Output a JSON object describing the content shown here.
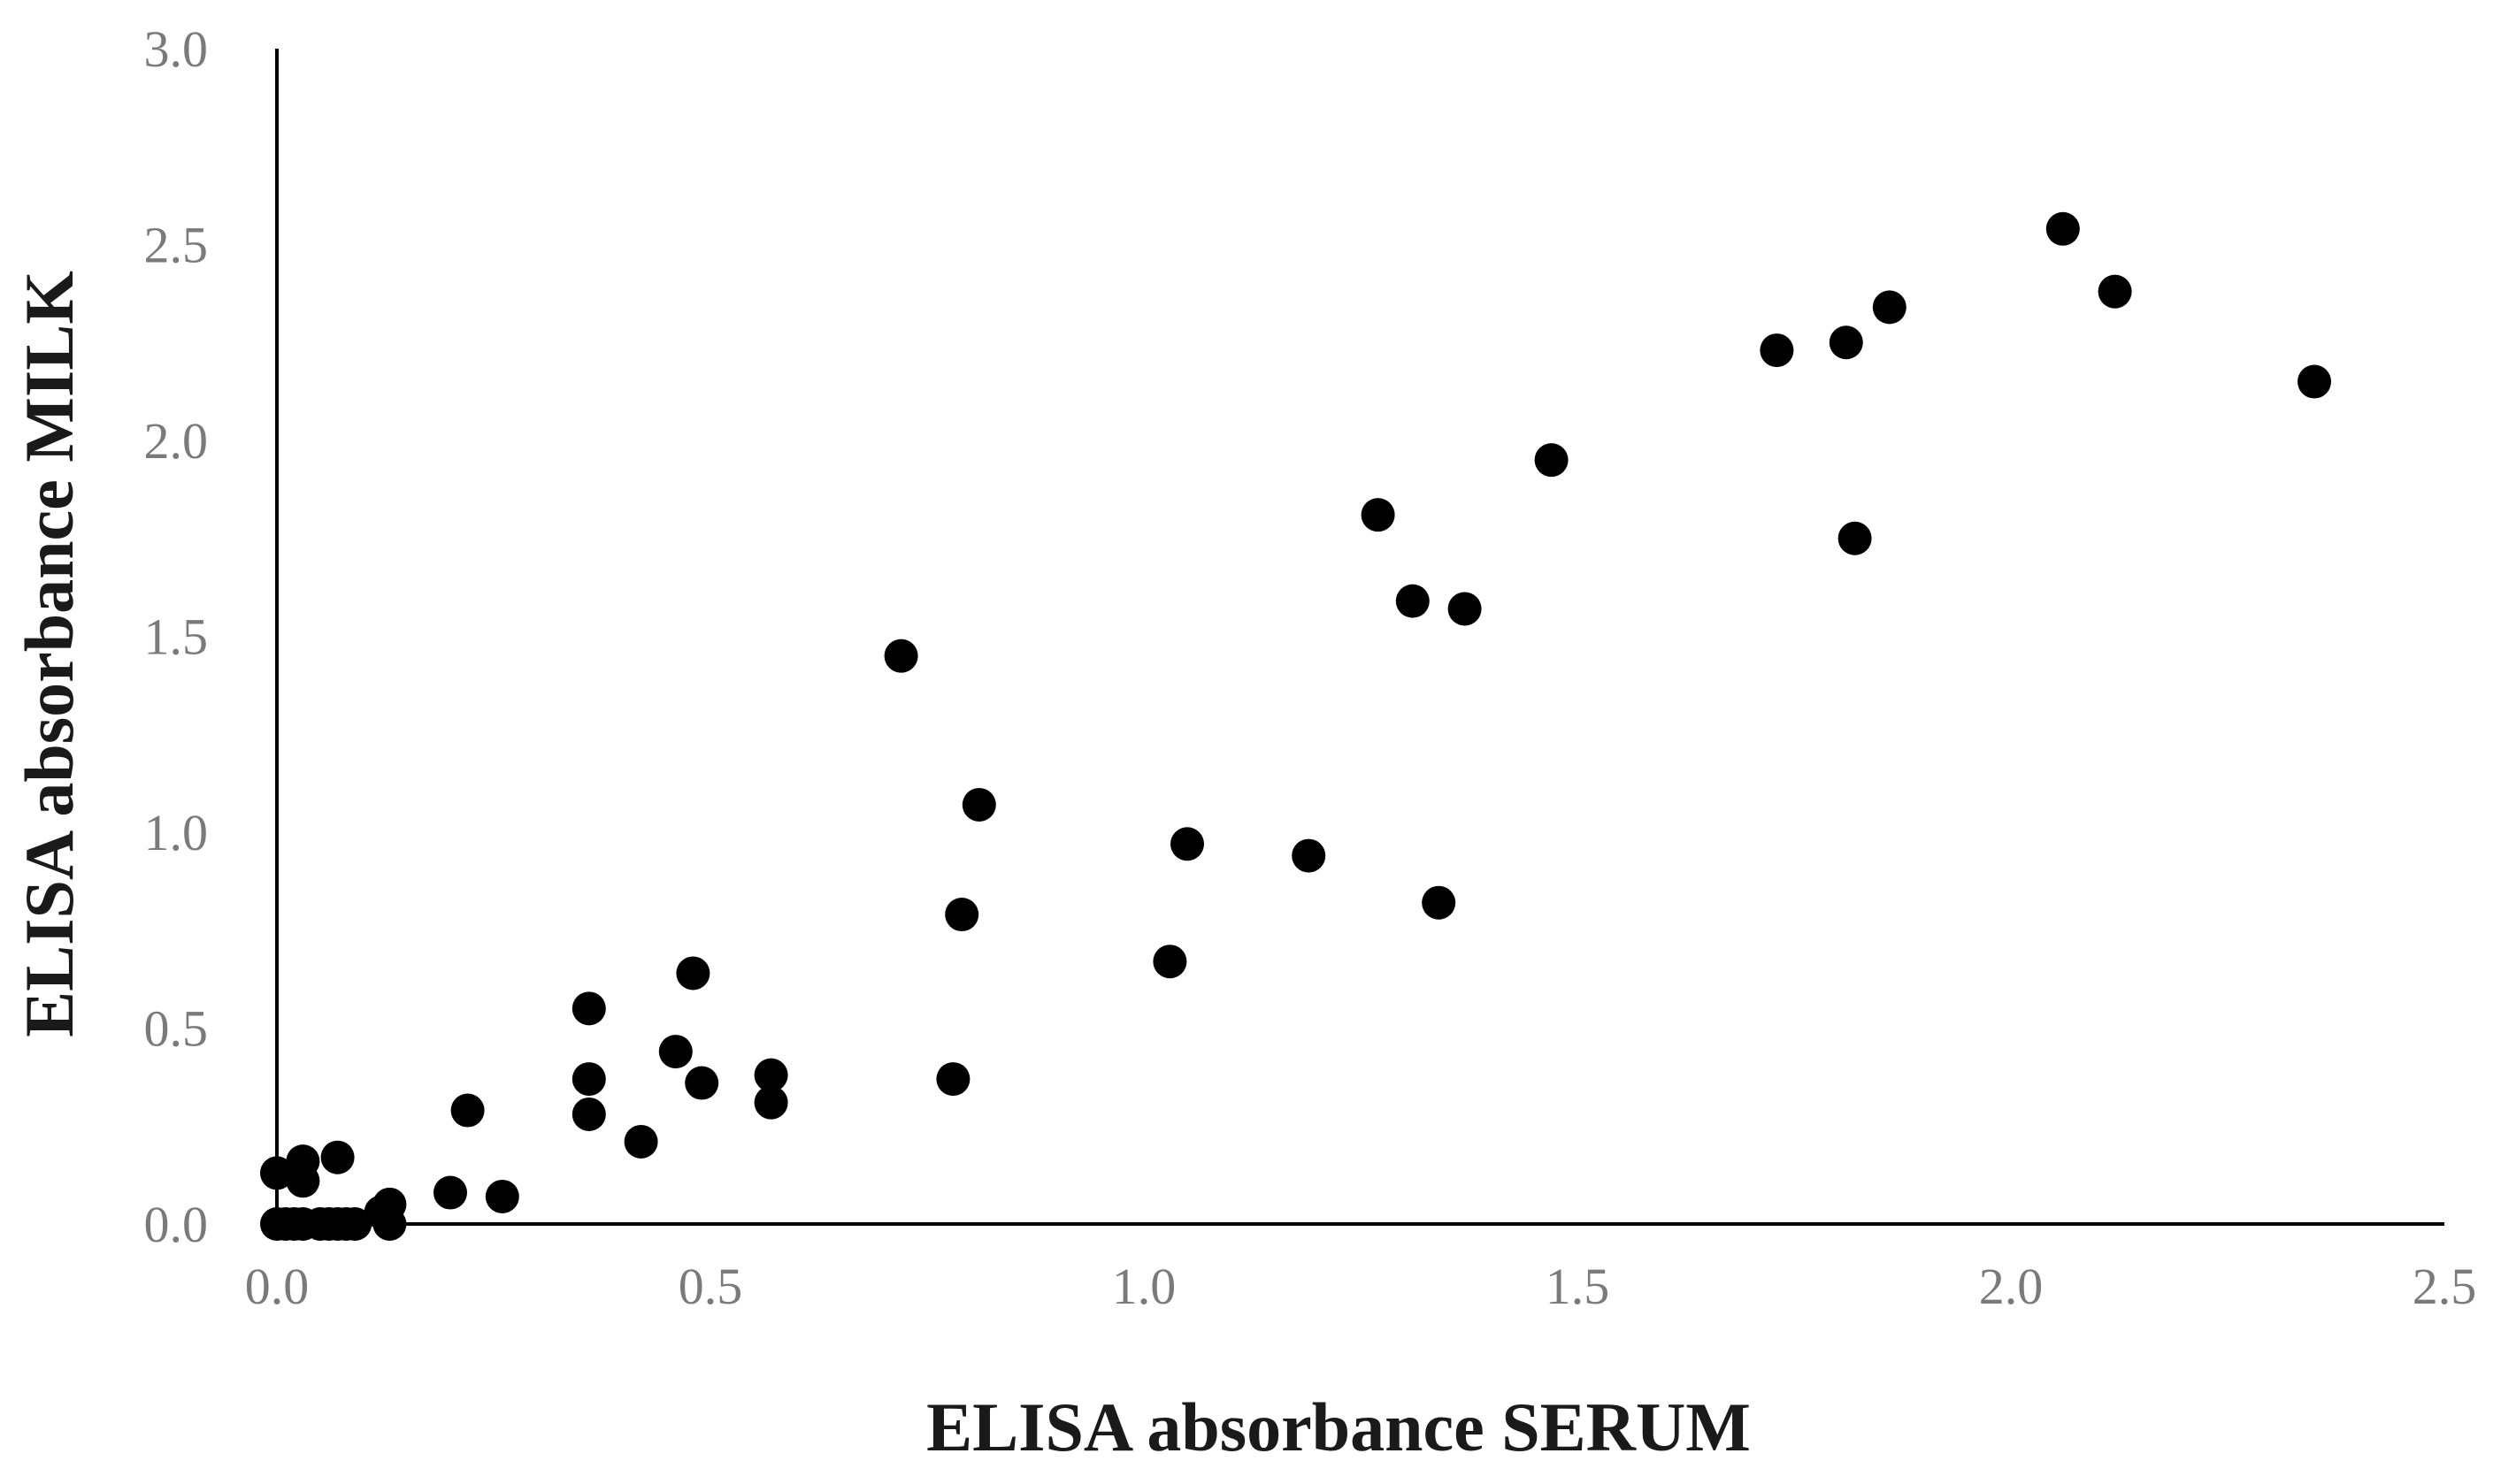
{
  "chart_data": {
    "type": "scatter",
    "title": "",
    "xlabel": "ELISA absorbance SERUM",
    "ylabel": "ELISA absorbance MILK",
    "xlim": [
      0,
      2.5
    ],
    "ylim": [
      0,
      3.0
    ],
    "x_ticks": [
      "0.0",
      "0.5",
      "1.0",
      "1.5",
      "2.0",
      "2.5"
    ],
    "y_ticks": [
      "0.0",
      "0.5",
      "1.0",
      "1.5",
      "2.0",
      "2.5",
      "3.0"
    ],
    "grid": false,
    "legend": "none",
    "marker_color": "#000000",
    "points": [
      {
        "x": 2.06,
        "y": 2.54
      },
      {
        "x": 2.12,
        "y": 2.38
      },
      {
        "x": 2.35,
        "y": 2.15
      },
      {
        "x": 1.73,
        "y": 2.23
      },
      {
        "x": 1.81,
        "y": 2.25
      },
      {
        "x": 1.86,
        "y": 2.34
      },
      {
        "x": 1.82,
        "y": 1.75
      },
      {
        "x": 1.47,
        "y": 1.95
      },
      {
        "x": 1.27,
        "y": 1.81
      },
      {
        "x": 1.31,
        "y": 1.59
      },
      {
        "x": 1.37,
        "y": 1.57
      },
      {
        "x": 1.34,
        "y": 0.82
      },
      {
        "x": 1.19,
        "y": 0.94
      },
      {
        "x": 1.05,
        "y": 0.97
      },
      {
        "x": 1.03,
        "y": 0.67
      },
      {
        "x": 0.72,
        "y": 1.45
      },
      {
        "x": 0.81,
        "y": 1.07
      },
      {
        "x": 0.79,
        "y": 0.79
      },
      {
        "x": 0.78,
        "y": 0.37
      },
      {
        "x": 0.57,
        "y": 0.38
      },
      {
        "x": 0.57,
        "y": 0.31
      },
      {
        "x": 0.48,
        "y": 0.64
      },
      {
        "x": 0.49,
        "y": 0.36
      },
      {
        "x": 0.46,
        "y": 0.44
      },
      {
        "x": 0.42,
        "y": 0.21
      },
      {
        "x": 0.36,
        "y": 0.55
      },
      {
        "x": 0.36,
        "y": 0.37
      },
      {
        "x": 0.36,
        "y": 0.28
      },
      {
        "x": 0.22,
        "y": 0.29
      },
      {
        "x": 0.26,
        "y": 0.07
      },
      {
        "x": 0.2,
        "y": 0.08
      },
      {
        "x": 0.13,
        "y": 0.05
      },
      {
        "x": 0.12,
        "y": 0.03
      },
      {
        "x": 0.13,
        "y": 0.0
      },
      {
        "x": 0.07,
        "y": 0.17
      },
      {
        "x": 0.03,
        "y": 0.16
      },
      {
        "x": 0.03,
        "y": 0.11
      },
      {
        "x": 0.0,
        "y": 0.13
      },
      {
        "x": 0.0,
        "y": 0.0
      },
      {
        "x": 0.01,
        "y": 0.0
      },
      {
        "x": 0.02,
        "y": 0.0
      },
      {
        "x": 0.03,
        "y": 0.0
      },
      {
        "x": 0.05,
        "y": 0.0
      },
      {
        "x": 0.06,
        "y": 0.0
      },
      {
        "x": 0.07,
        "y": 0.0
      },
      {
        "x": 0.08,
        "y": 0.0
      },
      {
        "x": 0.09,
        "y": 0.0
      }
    ]
  }
}
